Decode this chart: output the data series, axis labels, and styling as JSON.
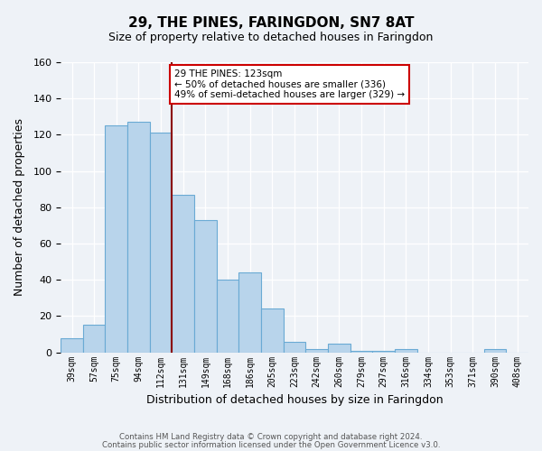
{
  "title": "29, THE PINES, FARINGDON, SN7 8AT",
  "subtitle": "Size of property relative to detached houses in Faringdon",
  "xlabel": "Distribution of detached houses by size in Faringdon",
  "ylabel": "Number of detached properties",
  "categories": [
    "39sqm",
    "57sqm",
    "75sqm",
    "94sqm",
    "112sqm",
    "131sqm",
    "149sqm",
    "168sqm",
    "186sqm",
    "205sqm",
    "223sqm",
    "242sqm",
    "260sqm",
    "279sqm",
    "297sqm",
    "316sqm",
    "334sqm",
    "353sqm",
    "371sqm",
    "390sqm",
    "408sqm"
  ],
  "values": [
    8,
    15,
    125,
    127,
    121,
    87,
    73,
    40,
    44,
    24,
    6,
    2,
    5,
    1,
    1,
    2,
    0,
    0,
    0,
    2,
    0
  ],
  "bar_color": "#b8d4eb",
  "bar_edge_color": "#6aaad4",
  "vline_color": "#8b0000",
  "annotation_title": "29 THE PINES: 123sqm",
  "annotation_line1": "← 50% of detached houses are smaller (336)",
  "annotation_line2": "49% of semi-detached houses are larger (329) →",
  "annotation_box_color": "white",
  "annotation_box_edge": "#cc0000",
  "ylim": [
    0,
    160
  ],
  "yticks": [
    0,
    20,
    40,
    60,
    80,
    100,
    120,
    140,
    160
  ],
  "footer1": "Contains HM Land Registry data © Crown copyright and database right 2024.",
  "footer2": "Contains public sector information licensed under the Open Government Licence v3.0.",
  "bg_color": "#eef2f7"
}
